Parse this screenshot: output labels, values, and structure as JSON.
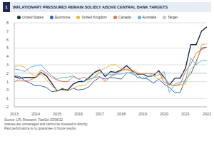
{
  "chart_data": {
    "type": "line",
    "figure_label": "1",
    "title": "INFLATIONARY PRESSURES REMAIN SOLIDLY ABOVE CENTRAL BANK TARGETS",
    "categories": [
      "2013",
      null,
      null,
      null,
      "2014",
      null,
      null,
      null,
      "2015",
      null,
      null,
      null,
      "2016",
      null,
      null,
      null,
      "2017",
      null,
      null,
      null,
      "2018",
      null,
      null,
      null,
      "2019",
      null,
      null,
      null,
      "2020",
      null,
      null,
      null,
      "2021",
      null,
      null,
      null,
      "2022"
    ],
    "series": [
      {
        "name": "United States",
        "color": "#1c2b4f",
        "values": [
          1.6,
          1.4,
          1.5,
          1.5,
          1.5,
          2.1,
          1.7,
          0.8,
          -0.1,
          0.1,
          0.0,
          0.7,
          1.0,
          1.0,
          1.5,
          2.1,
          2.4,
          1.6,
          2.2,
          2.1,
          2.4,
          2.9,
          2.3,
          1.9,
          1.9,
          1.6,
          1.7,
          2.3,
          1.5,
          0.6,
          1.4,
          1.4,
          2.6,
          5.4,
          5.4,
          7.0,
          7.5
        ]
      },
      {
        "name": "Eurozone",
        "color": "#2f62b0",
        "values": [
          1.7,
          1.6,
          1.1,
          0.8,
          0.5,
          0.5,
          0.3,
          -0.2,
          -0.1,
          0.2,
          -0.1,
          0.2,
          0.0,
          0.1,
          0.4,
          1.1,
          1.5,
          1.3,
          1.5,
          1.4,
          1.3,
          2.0,
          2.1,
          1.5,
          1.4,
          1.3,
          0.8,
          1.3,
          0.7,
          0.3,
          -0.3,
          -0.3,
          1.3,
          1.9,
          3.4,
          5.0,
          5.1
        ]
      },
      {
        "name": "United Kingdom",
        "color": "#f2b632",
        "values": [
          2.8,
          2.9,
          2.7,
          2.0,
          1.6,
          1.9,
          1.2,
          0.5,
          0.0,
          0.0,
          -0.1,
          0.2,
          0.5,
          0.5,
          1.0,
          1.6,
          2.3,
          2.6,
          3.0,
          3.0,
          2.5,
          2.4,
          2.4,
          2.1,
          1.9,
          2.0,
          1.7,
          1.3,
          1.5,
          0.6,
          0.5,
          0.6,
          0.7,
          2.5,
          3.1,
          5.4,
          5.5
        ]
      },
      {
        "name": "Canada",
        "color": "#e8703a",
        "values": [
          1.0,
          1.2,
          1.1,
          1.2,
          1.5,
          2.4,
          2.0,
          1.5,
          1.2,
          1.0,
          1.0,
          1.6,
          1.3,
          1.5,
          1.3,
          1.5,
          1.6,
          1.0,
          1.6,
          1.9,
          2.3,
          2.5,
          2.2,
          2.0,
          1.9,
          2.0,
          1.9,
          2.2,
          0.9,
          0.7,
          0.5,
          0.7,
          2.2,
          3.1,
          4.4,
          4.8,
          5.1
        ]
      },
      {
        "name": "Australia",
        "color": "#5ab4e5",
        "values": [
          2.5,
          2.4,
          2.2,
          2.7,
          2.9,
          3.0,
          2.3,
          1.7,
          1.3,
          1.5,
          1.5,
          1.7,
          1.3,
          1.0,
          1.3,
          1.5,
          2.1,
          1.9,
          1.8,
          1.9,
          1.9,
          2.1,
          1.9,
          1.8,
          1.3,
          1.6,
          1.7,
          1.8,
          2.2,
          -0.3,
          0.7,
          0.9,
          1.1,
          3.8,
          3.0,
          3.5,
          3.5
        ]
      },
      {
        "name": "Target",
        "color": "#c4c4c4",
        "values": [
          2,
          2,
          2,
          2,
          2,
          2,
          2,
          2,
          2,
          2,
          2,
          2,
          2,
          2,
          2,
          2,
          2,
          2,
          2,
          2,
          2,
          2,
          2,
          2,
          2,
          2,
          2,
          2,
          2,
          2,
          2,
          2,
          2,
          2,
          2,
          2,
          2
        ]
      }
    ],
    "ylim": [
      -2,
      8
    ],
    "yticks": [
      -2,
      -1,
      0,
      1,
      2,
      3,
      4,
      5,
      6,
      7,
      8
    ],
    "grid": true,
    "legend": "top",
    "notes": [
      "Source: LPL Research, FactSet 03/08/22",
      "Indexes are unmanaged and cannot be invested in directly.",
      "Past performance is no guarantee of future results."
    ]
  }
}
